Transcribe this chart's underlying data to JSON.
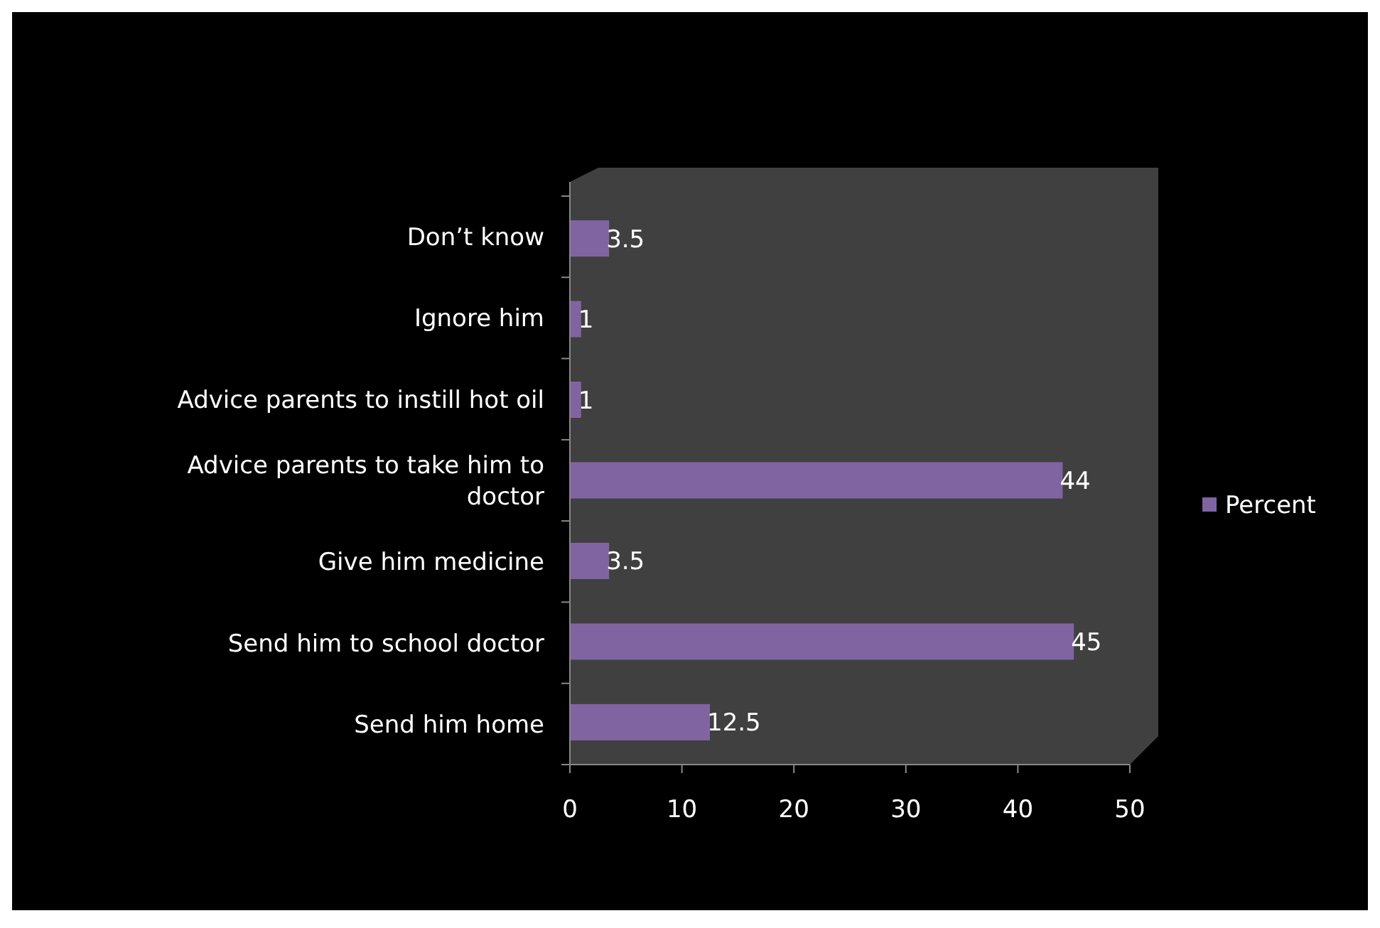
{
  "chart_data": {
    "type": "bar",
    "orientation": "horizontal",
    "categories": [
      "Don’t know",
      "Ignore him",
      "Advice parents to instill hot oil",
      "Advice parents to take him to doctor",
      "Give him medicine",
      "Send him to school doctor",
      "Send him home"
    ],
    "series": [
      {
        "name": "Percent",
        "color": "#8064a2",
        "values": [
          3.5,
          1,
          1,
          44,
          3.5,
          45,
          12.5
        ]
      }
    ],
    "xlim": [
      0,
      50
    ],
    "xticks": [
      0,
      10,
      20,
      30,
      40,
      50
    ],
    "data_labels": true,
    "legend": "right",
    "grid": false
  }
}
